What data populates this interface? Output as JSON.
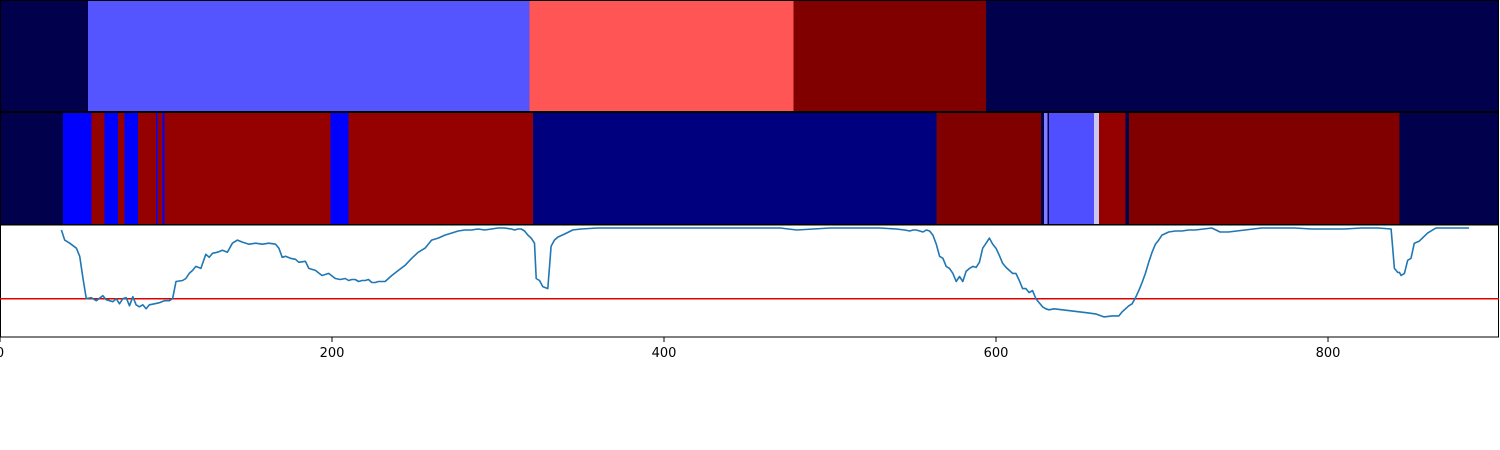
{
  "chart_data": [
    {
      "type": "heatmap",
      "panel": "top-strip",
      "x_range": [
        0,
        903
      ],
      "segments": [
        {
          "start": 0,
          "end": 53,
          "color": "#00004c"
        },
        {
          "start": 53,
          "end": 319,
          "color": "#5555ff"
        },
        {
          "start": 319,
          "end": 478,
          "color": "#ff5555"
        },
        {
          "start": 478,
          "end": 594,
          "color": "#800000"
        },
        {
          "start": 594,
          "end": 903,
          "color": "#00004c"
        }
      ]
    },
    {
      "type": "heatmap",
      "panel": "middle-strip",
      "x_range": [
        0,
        903
      ],
      "segments": [
        {
          "start": 0,
          "end": 38,
          "color": "#00004c"
        },
        {
          "start": 38,
          "end": 55,
          "color": "#0000ff"
        },
        {
          "start": 55,
          "end": 63,
          "color": "#950000"
        },
        {
          "start": 63,
          "end": 71,
          "color": "#0000ff"
        },
        {
          "start": 71,
          "end": 75,
          "color": "#950000"
        },
        {
          "start": 75,
          "end": 83,
          "color": "#0000ff"
        },
        {
          "start": 83,
          "end": 94,
          "color": "#950000"
        },
        {
          "start": 94,
          "end": 95,
          "color": "#0000ff"
        },
        {
          "start": 95,
          "end": 98,
          "color": "#950000"
        },
        {
          "start": 98,
          "end": 99,
          "color": "#0000ff"
        },
        {
          "start": 99,
          "end": 199,
          "color": "#950000"
        },
        {
          "start": 199,
          "end": 210,
          "color": "#0000ff"
        },
        {
          "start": 210,
          "end": 321,
          "color": "#950000"
        },
        {
          "start": 321,
          "end": 564,
          "color": "#00007f"
        },
        {
          "start": 564,
          "end": 627,
          "color": "#800000"
        },
        {
          "start": 627,
          "end": 629,
          "color": "#00004c"
        },
        {
          "start": 629,
          "end": 631,
          "color": "#8080ff"
        },
        {
          "start": 631,
          "end": 632,
          "color": "#00004c"
        },
        {
          "start": 632,
          "end": 659,
          "color": "#4f4fff"
        },
        {
          "start": 659,
          "end": 662,
          "color": "#c8c8f0"
        },
        {
          "start": 662,
          "end": 678,
          "color": "#950000"
        },
        {
          "start": 678,
          "end": 680,
          "color": "#00004c"
        },
        {
          "start": 680,
          "end": 843,
          "color": "#800000"
        },
        {
          "start": 843,
          "end": 903,
          "color": "#00004c"
        }
      ]
    },
    {
      "type": "line",
      "panel": "line-panel",
      "xlim": [
        0,
        903
      ],
      "ylim": [
        0,
        1
      ],
      "xticks": [
        0,
        200,
        400,
        600,
        800
      ],
      "xtick_labels": [
        "0",
        "200",
        "400",
        "600",
        "800"
      ],
      "threshold": 0.3,
      "threshold_color": "#dd0000",
      "line_color": "#1f77b4",
      "x": [
        37,
        39,
        42,
        46,
        48,
        50,
        52,
        55,
        58,
        62,
        64,
        66,
        68,
        70,
        72,
        74,
        76,
        78,
        80,
        82,
        84,
        86,
        88,
        90,
        93,
        96,
        99,
        102,
        104,
        106,
        110,
        112,
        114,
        116,
        118,
        121,
        124,
        126,
        128,
        131,
        134,
        137,
        140,
        143,
        146,
        150,
        154,
        158,
        162,
        166,
        168,
        170,
        172,
        175,
        178,
        180,
        184,
        186,
        190,
        194,
        198,
        202,
        205,
        208,
        210,
        212,
        214,
        216,
        218,
        220,
        222,
        224,
        226,
        228,
        232,
        236,
        240,
        244,
        248,
        252,
        256,
        260,
        264,
        268,
        272,
        276,
        280,
        284,
        288,
        292,
        296,
        300,
        304,
        308,
        310,
        312,
        314,
        316,
        318,
        320,
        322,
        323,
        325,
        327,
        330,
        332,
        334,
        336,
        340,
        345,
        350,
        360,
        370,
        380,
        390,
        400,
        410,
        420,
        430,
        440,
        450,
        460,
        470,
        480,
        490,
        500,
        510,
        520,
        530,
        540,
        545,
        548,
        550,
        552,
        554,
        556,
        558,
        560,
        562,
        564,
        566,
        568,
        570,
        572,
        574,
        576,
        578,
        580,
        582,
        584,
        586,
        588,
        590,
        592,
        594,
        596,
        598,
        600,
        602,
        604,
        606,
        608,
        610,
        612,
        614,
        616,
        618,
        620,
        622,
        624,
        626,
        628,
        630,
        632,
        635,
        640,
        645,
        650,
        655,
        660,
        665,
        670,
        674,
        676,
        678,
        680,
        682,
        684,
        686,
        688,
        690,
        692,
        694,
        696,
        698,
        700,
        704,
        708,
        712,
        716,
        720,
        725,
        730,
        735,
        740,
        745,
        750,
        755,
        760,
        770,
        780,
        790,
        800,
        810,
        820,
        830,
        838,
        840,
        841,
        842,
        843,
        844,
        846,
        848,
        850,
        852,
        855,
        860,
        865,
        870,
        875,
        880,
        885
      ],
      "y": [
        0.98,
        0.88,
        0.85,
        0.8,
        0.72,
        0.5,
        0.3,
        0.31,
        0.28,
        0.33,
        0.29,
        0.28,
        0.27,
        0.3,
        0.25,
        0.3,
        0.31,
        0.23,
        0.32,
        0.24,
        0.22,
        0.24,
        0.2,
        0.24,
        0.25,
        0.26,
        0.28,
        0.28,
        0.3,
        0.47,
        0.48,
        0.5,
        0.55,
        0.58,
        0.62,
        0.6,
        0.74,
        0.71,
        0.75,
        0.76,
        0.78,
        0.76,
        0.85,
        0.88,
        0.86,
        0.84,
        0.85,
        0.84,
        0.85,
        0.84,
        0.8,
        0.71,
        0.72,
        0.7,
        0.69,
        0.66,
        0.67,
        0.6,
        0.58,
        0.53,
        0.55,
        0.5,
        0.49,
        0.5,
        0.48,
        0.49,
        0.49,
        0.47,
        0.48,
        0.48,
        0.49,
        0.46,
        0.46,
        0.47,
        0.47,
        0.53,
        0.58,
        0.63,
        0.7,
        0.76,
        0.8,
        0.88,
        0.9,
        0.93,
        0.95,
        0.97,
        0.98,
        0.98,
        0.99,
        0.98,
        0.99,
        1.0,
        1.0,
        0.99,
        0.98,
        0.99,
        0.99,
        0.97,
        0.93,
        0.9,
        0.85,
        0.5,
        0.48,
        0.42,
        0.4,
        0.82,
        0.88,
        0.91,
        0.94,
        0.98,
        0.99,
        1.0,
        1.0,
        1.0,
        1.0,
        1.0,
        1.0,
        1.0,
        1.0,
        1.0,
        1.0,
        1.0,
        1.0,
        0.98,
        0.99,
        1.0,
        1.0,
        1.0,
        1.0,
        0.99,
        0.98,
        0.97,
        0.98,
        0.98,
        0.97,
        0.96,
        0.98,
        0.97,
        0.93,
        0.84,
        0.72,
        0.7,
        0.62,
        0.6,
        0.55,
        0.47,
        0.52,
        0.47,
        0.57,
        0.6,
        0.62,
        0.61,
        0.66,
        0.8,
        0.85,
        0.9,
        0.84,
        0.8,
        0.73,
        0.65,
        0.61,
        0.58,
        0.55,
        0.55,
        0.48,
        0.4,
        0.4,
        0.36,
        0.38,
        0.3,
        0.26,
        0.22,
        0.2,
        0.19,
        0.2,
        0.19,
        0.18,
        0.17,
        0.16,
        0.15,
        0.12,
        0.13,
        0.13,
        0.17,
        0.2,
        0.23,
        0.25,
        0.31,
        0.38,
        0.46,
        0.55,
        0.66,
        0.76,
        0.84,
        0.88,
        0.93,
        0.96,
        0.97,
        0.97,
        0.98,
        0.98,
        0.99,
        1.0,
        0.96,
        0.96,
        0.97,
        0.98,
        0.99,
        1.0,
        1.0,
        1.0,
        0.99,
        0.99,
        0.99,
        1.0,
        1.0,
        0.99,
        0.6,
        0.58,
        0.56,
        0.56,
        0.53,
        0.55,
        0.68,
        0.7,
        0.85,
        0.87,
        0.95,
        1.0,
        1.0,
        1.0,
        1.0,
        1.0
      ]
    }
  ]
}
